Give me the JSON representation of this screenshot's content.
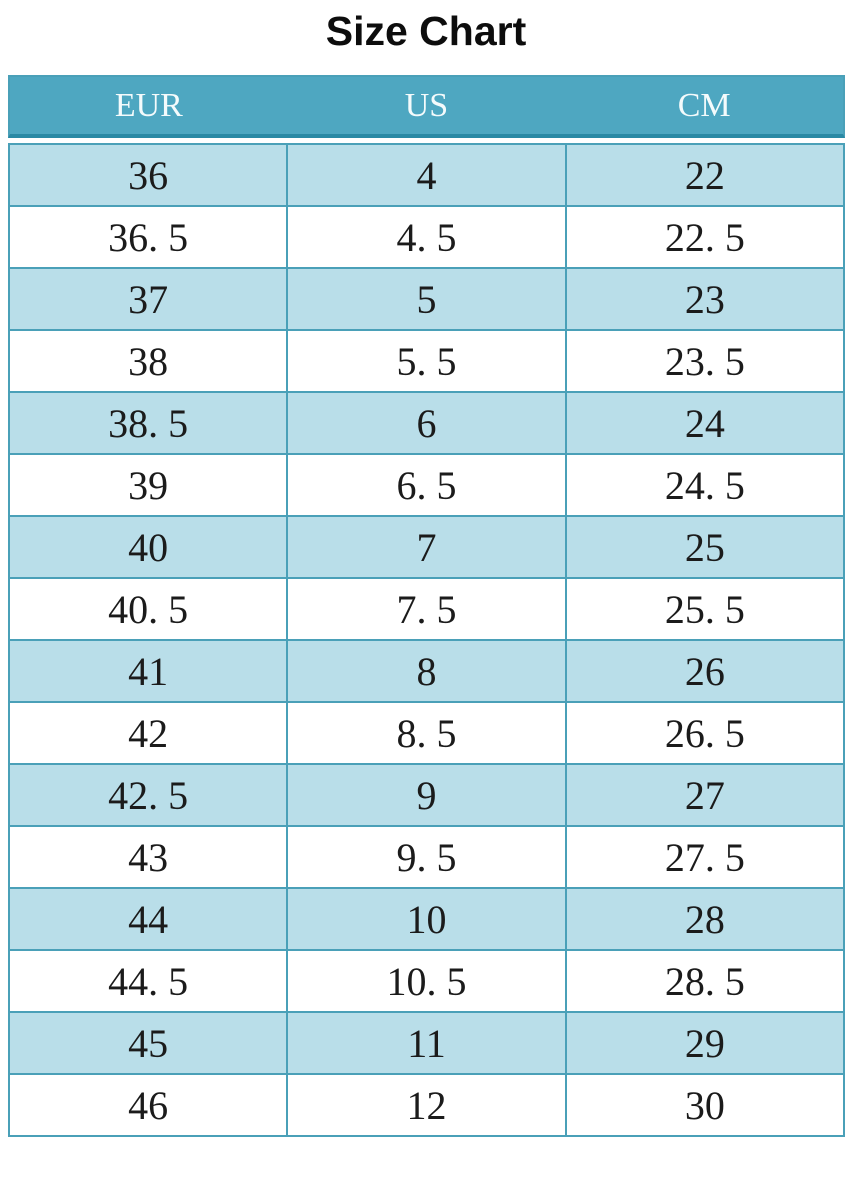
{
  "title": "Size Chart",
  "table": {
    "headers": [
      "EUR",
      "US",
      "CM"
    ],
    "rows": [
      [
        "36",
        "4",
        "22"
      ],
      [
        "36. 5",
        "4. 5",
        "22. 5"
      ],
      [
        "37",
        "5",
        "23"
      ],
      [
        "38",
        "5. 5",
        "23. 5"
      ],
      [
        "38. 5",
        "6",
        "24"
      ],
      [
        "39",
        "6. 5",
        "24. 5"
      ],
      [
        "40",
        "7",
        "25"
      ],
      [
        "40. 5",
        "7. 5",
        "25. 5"
      ],
      [
        "41",
        "8",
        "26"
      ],
      [
        "42",
        "8. 5",
        "26. 5"
      ],
      [
        "42. 5",
        "9",
        "27"
      ],
      [
        "43",
        "9. 5",
        "27. 5"
      ],
      [
        "44",
        "10",
        "28"
      ],
      [
        "44. 5",
        "10. 5",
        "28. 5"
      ],
      [
        "45",
        "11",
        "29"
      ],
      [
        "46",
        "12",
        "30"
      ]
    ]
  },
  "colors": {
    "header_bg": "#4ea7c1",
    "header_text": "#f4fbfc",
    "row_alt_bg": "#b9dee9",
    "row_bg": "#ffffff",
    "border": "#4aa0b8",
    "header_divider": "#2a89a4",
    "title_color": "#0d0d0d",
    "cell_text": "#1b1b1b"
  }
}
